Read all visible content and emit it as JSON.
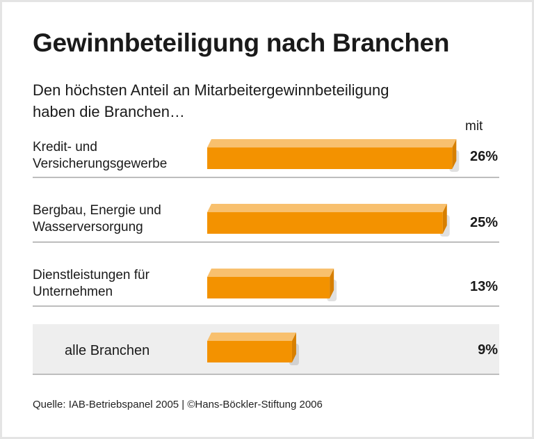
{
  "title": "Gewinnbeteiligung nach Branchen",
  "subtitle": [
    "Den höchsten Anteil an Mitarbeitergewinnbeteiligung",
    "haben die Branchen…"
  ],
  "column_header": "mit",
  "colors": {
    "bar_front": "#f39200",
    "bar_top": "#f8c06e",
    "bar_side": "#d77f00",
    "highlight_row": "#eeeeee"
  },
  "chart_data": {
    "type": "bar",
    "orientation": "horizontal",
    "categories": [
      [
        "Kredit- und",
        "Versicherungsgewerbe"
      ],
      [
        "Bergbau, Energie und",
        "Wasserversorgung"
      ],
      [
        "Dienstleistungen für",
        "Unternehmen"
      ],
      [
        "alle Branchen"
      ]
    ],
    "values": [
      26,
      25,
      13,
      9
    ],
    "value_labels": [
      "26%",
      "25%",
      "13%",
      "9%"
    ],
    "unit": "%"
  },
  "footer": "Quelle: IAB-Betriebspanel 2005 | ©Hans-Böckler-Stiftung 2006"
}
